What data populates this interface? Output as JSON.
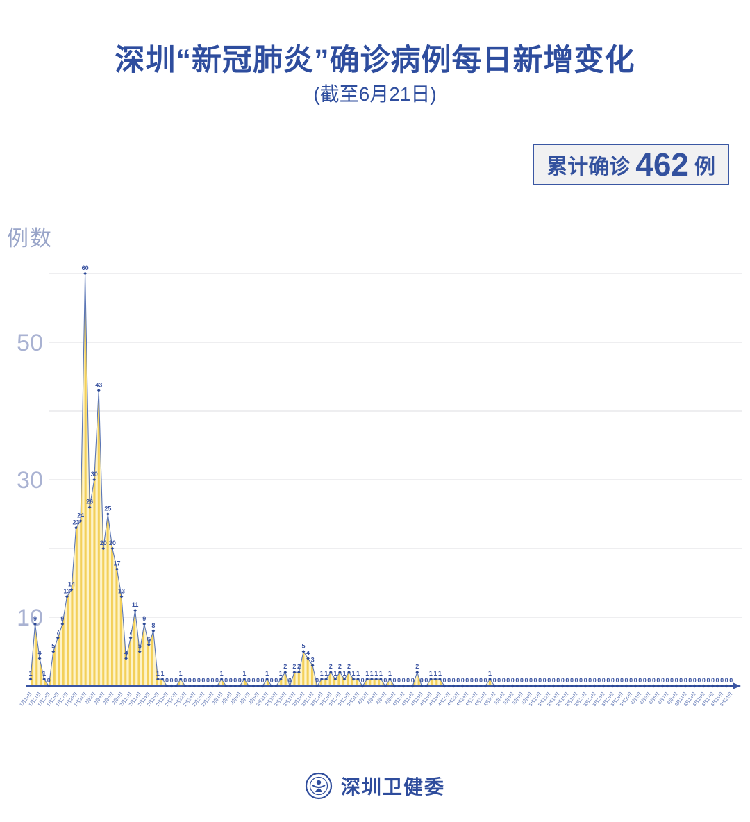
{
  "title": "深圳“新冠肺炎”确诊病例每日新增变化",
  "subtitle": "(截至6月21日)",
  "badge": {
    "prefix": "累计确诊",
    "value": "462",
    "suffix": "例"
  },
  "y_axis_title": "例数",
  "footer": {
    "org": "深圳卫健委",
    "logo_icon": "shenzhen-health-commission-emblem"
  },
  "colors": {
    "brand_blue": "#2e4d9e",
    "line": "#5b76b6",
    "marker": "#2b4896",
    "point_label": "#3c55a2",
    "stripe_gold": "#f3d05a",
    "stripe_pale": "#fdf3c9",
    "grid": "#e4e4e6",
    "tick_label": "#a9b2d2",
    "badge_bg": "#f1f1f2"
  },
  "chart_data": {
    "type": "area",
    "title": "深圳“新冠肺炎”确诊病例每日新增变化",
    "subtitle": "截至6月21日",
    "xlabel": "",
    "ylabel": "例数",
    "ylim": [
      0,
      62
    ],
    "y_ticks": [
      10,
      30,
      50
    ],
    "gridline_values": [
      10,
      20,
      30,
      40,
      50,
      60
    ],
    "grid": true,
    "legend": "none",
    "total_label": "累计确诊462例",
    "x_tick_every": 2,
    "x_tick_labels": [
      "1月19日",
      "1月21日",
      "1月23日",
      "1月25日",
      "1月27日",
      "1月29日",
      "1月31日",
      "2月2日",
      "2月4日",
      "2月6日",
      "2月8日",
      "2月10日",
      "2月12日",
      "2月14日",
      "2月16日",
      "2月18日",
      "2月20日",
      "2月22日",
      "2月24日",
      "2月26日",
      "2月28日",
      "3月1日",
      "3月3日",
      "3月5日",
      "3月7日",
      "3月9日",
      "3月11日",
      "3月13日",
      "3月15日",
      "3月17日",
      "3月19日",
      "3月21日",
      "3月23日",
      "3月25日",
      "3月27日",
      "3月29日",
      "3月31日",
      "4月2日",
      "4月4日",
      "4月6日",
      "4月8日",
      "4月10日",
      "4月12日",
      "4月14日",
      "4月16日",
      "4月18日",
      "4月20日",
      "4月22日",
      "4月24日",
      "4月26日",
      "4月28日",
      "4月30日",
      "5月2日",
      "5月4日",
      "5月6日",
      "5月8日",
      "5月10日",
      "5月12日",
      "5月14日",
      "5月16日",
      "5月18日",
      "5月20日",
      "5月22日",
      "5月24日",
      "5月26日",
      "5月28日",
      "5月30日",
      "6月1日",
      "6月3日",
      "6月5日",
      "6月7日",
      "6月9日",
      "6月11日",
      "6月13日",
      "6月15日",
      "6月17日",
      "6月19日",
      "6月21日"
    ],
    "values": [
      1,
      9,
      4,
      1,
      0,
      5,
      7,
      9,
      13,
      14,
      23,
      24,
      60,
      26,
      30,
      43,
      20,
      25,
      20,
      17,
      13,
      4,
      7,
      11,
      5,
      9,
      6,
      8,
      1,
      1,
      0,
      0,
      0,
      1,
      0,
      0,
      0,
      0,
      0,
      0,
      0,
      0,
      1,
      0,
      0,
      0,
      0,
      1,
      0,
      0,
      0,
      0,
      1,
      0,
      0,
      1,
      2,
      0,
      2,
      2,
      5,
      4,
      3,
      0,
      1,
      1,
      2,
      1,
      2,
      1,
      2,
      1,
      1,
      0,
      1,
      1,
      1,
      1,
      0,
      1,
      0,
      0,
      0,
      0,
      0,
      2,
      0,
      0,
      1,
      1,
      1,
      0,
      0,
      0,
      0,
      0,
      0,
      0,
      0,
      0,
      0,
      1,
      0,
      0,
      0,
      0,
      0,
      0,
      0,
      0,
      0,
      0,
      0,
      0,
      0,
      0,
      0,
      0,
      0,
      0,
      0,
      0,
      0,
      0,
      0,
      0,
      0,
      0,
      0,
      0,
      0,
      0,
      0,
      0,
      0,
      0,
      0,
      0,
      0,
      0,
      0,
      0,
      0,
      0,
      0,
      0,
      0,
      0,
      0,
      0,
      0,
      0,
      0,
      0,
      0
    ]
  }
}
